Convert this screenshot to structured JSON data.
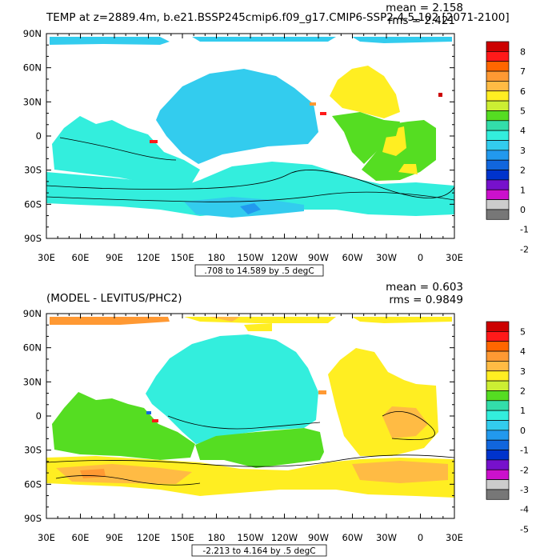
{
  "chart_data": [
    {
      "type": "heatmap",
      "title": "TEMP at z=2889.4m, b.e21.BSSP245cmip6.f09_g17.CMIP6-SSP2-4.5.102 [2071-2100]",
      "stats": [
        "mean = 2.158",
        "rms = 2.421"
      ],
      "x_ticks": [
        "30E",
        "60E",
        "90E",
        "120E",
        "150E",
        "180",
        "150W",
        "120W",
        "90W",
        "60W",
        "30W",
        "0",
        "30E"
      ],
      "y_ticks": [
        "90N",
        "60N",
        "30N",
        "0",
        "30S",
        "60S",
        "90S"
      ],
      "xlim": [
        30,
        390
      ],
      "ylim": [
        -90,
        90
      ],
      "contour_info": ".708 to 14.589 by .5 degC",
      "colorbar": {
        "labels": [
          "8",
          "7",
          "6",
          "5",
          "4",
          "3",
          "2",
          "1",
          "0",
          "-1",
          "-2"
        ],
        "colors": [
          "#cc0000",
          "#ff1a1a",
          "#ff6600",
          "#ff9933",
          "#ffbb44",
          "#ffee22",
          "#ccee33",
          "#55dd22",
          "#33ddaa",
          "#33eedd",
          "#33ccee",
          "#2299ee",
          "#1166dd",
          "#0033cc",
          "#7711cc",
          "#cc11cc",
          "#cccccc",
          "#777777"
        ]
      }
    },
    {
      "type": "heatmap",
      "title": "(MODEL - LEVITUS/PHC2)",
      "stats": [
        "mean = 0.603",
        "rms = 0.9849"
      ],
      "x_ticks": [
        "30E",
        "60E",
        "90E",
        "120E",
        "150E",
        "180",
        "150W",
        "120W",
        "90W",
        "60W",
        "30W",
        "0",
        "30E"
      ],
      "y_ticks": [
        "90N",
        "60N",
        "30N",
        "0",
        "30S",
        "60S",
        "90S"
      ],
      "xlim": [
        30,
        390
      ],
      "ylim": [
        -90,
        90
      ],
      "contour_info": "-2.213 to 4.164 by .5 degC",
      "colorbar": {
        "labels": [
          "5",
          "4",
          "3",
          "2",
          "1",
          "0",
          "-1",
          "-2",
          "-3",
          "-4",
          "-5"
        ],
        "colors": [
          "#cc0000",
          "#ff1a1a",
          "#ff6600",
          "#ff9933",
          "#ffbb44",
          "#ffee22",
          "#ccee33",
          "#55dd22",
          "#33ddaa",
          "#33eedd",
          "#33ccee",
          "#2299ee",
          "#1166dd",
          "#0033cc",
          "#7711cc",
          "#cc11cc",
          "#cccccc",
          "#777777"
        ]
      }
    }
  ]
}
